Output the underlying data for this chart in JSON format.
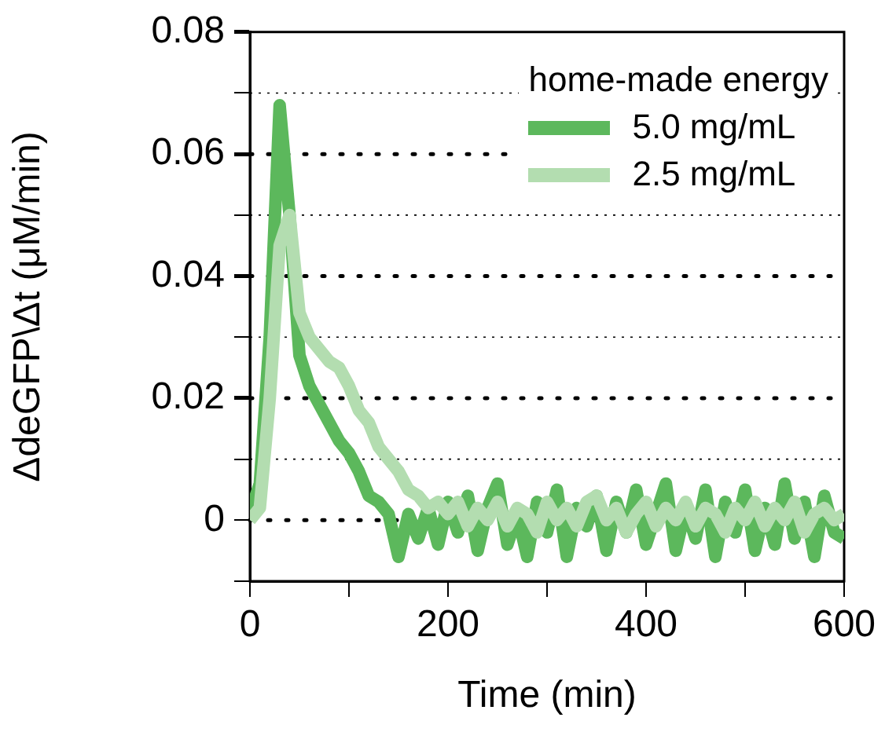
{
  "chart_data": {
    "type": "line",
    "xlabel": "Time (min)",
    "ylabel": "ΔdeGFP\\Δt (μM/min)",
    "legend_title": "home-made energy",
    "legend": "top right",
    "grid": "y",
    "marker": "none",
    "line_style": "solid",
    "x": [
      0,
      10,
      20,
      30,
      40,
      50,
      60,
      70,
      80,
      90,
      100,
      110,
      120,
      130,
      140,
      150,
      160,
      170,
      180,
      190,
      200,
      210,
      220,
      230,
      240,
      250,
      260,
      270,
      280,
      290,
      300,
      310,
      320,
      330,
      340,
      350,
      360,
      370,
      380,
      390,
      400,
      410,
      420,
      430,
      440,
      450,
      460,
      470,
      480,
      490,
      500,
      510,
      520,
      530,
      540,
      550,
      560,
      570,
      580,
      590,
      600
    ],
    "xlim": [
      0,
      600
    ],
    "xticks": [
      0,
      {
        "value": 100,
        "label": null
      },
      200,
      {
        "value": 300,
        "label": null
      },
      400,
      {
        "value": 500,
        "label": null
      },
      600
    ],
    "ylim": [
      -0.01,
      0.08
    ],
    "yticks": [
      {
        "value": -0.01,
        "label": null
      },
      0,
      {
        "value": 0.01,
        "label": null
      },
      0.02,
      {
        "value": 0.03,
        "label": null
      },
      0.04,
      {
        "value": 0.05,
        "label": null
      },
      0.06,
      {
        "value": 0.07,
        "label": null
      },
      0.08
    ],
    "series": [
      {
        "name": "5.0 mg/mL",
        "color": "#5cb85c",
        "values": [
          0.001,
          0.006,
          0.03,
          0.068,
          0.05,
          0.027,
          0.022,
          0.019,
          0.016,
          0.013,
          0.011,
          0.008,
          0.004,
          0.003,
          0.001,
          -0.006,
          0.001,
          -0.003,
          0.002,
          -0.004,
          0.003,
          -0.002,
          0.004,
          -0.005,
          0.002,
          0.006,
          -0.004,
          0.001,
          -0.006,
          0.003,
          -0.002,
          0.005,
          -0.006,
          0.002,
          -0.001,
          0.004,
          -0.005,
          0.003,
          -0.002,
          0.005,
          -0.004,
          0.001,
          0.006,
          -0.005,
          0.002,
          -0.003,
          0.005,
          -0.006,
          0.003,
          -0.002,
          0.005,
          -0.005,
          0.002,
          -0.004,
          0.006,
          -0.003,
          0.003,
          -0.006,
          0.004,
          -0.002,
          -0.003
        ]
      },
      {
        "name": "2.5 mg/mL",
        "color": "#b3ddb0",
        "values": [
          0,
          0.002,
          0.02,
          0.045,
          0.05,
          0.034,
          0.03,
          0.028,
          0.026,
          0.025,
          0.022,
          0.018,
          0.016,
          0.012,
          0.01,
          0.008,
          0.005,
          0.004,
          0.002,
          0.003,
          0.001,
          0.003,
          -0.001,
          0.002,
          0,
          0.003,
          -0.001,
          0.002,
          0.001,
          -0.002,
          0.003,
          0,
          0.002,
          -0.001,
          0.003,
          0.004,
          0,
          0.002,
          -0.002,
          0.001,
          0.003,
          -0.001,
          0.002,
          0,
          0.003,
          -0.001,
          0.002,
          0.001,
          -0.002,
          0.002,
          0,
          0.003,
          -0.001,
          0.002,
          0,
          0.003,
          -0.002,
          0.001,
          0.002,
          0,
          0.001
        ]
      }
    ]
  }
}
